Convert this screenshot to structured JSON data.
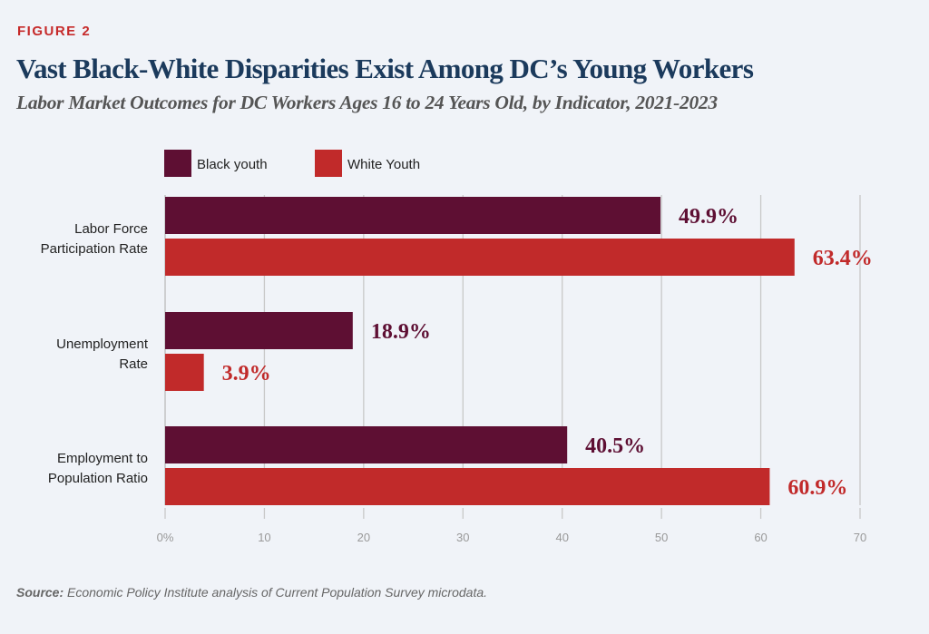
{
  "figure_label": "FIGURE 2",
  "title": "Vast Black-White Disparities Exist Among DC’s Young Workers",
  "subtitle": "Labor Market Outcomes for DC Workers Ages 16 to 24 Years Old, by Indicator, 2021-2023",
  "source": {
    "label": "Source:",
    "text": " Economic Policy Institute analysis of Current Population Survey microdata."
  },
  "chart_data": {
    "type": "bar",
    "orientation": "horizontal",
    "categories": [
      [
        "Labor Force",
        "Participation Rate"
      ],
      [
        "Unemployment",
        "Rate"
      ],
      [
        "Employment to",
        "Population Ratio"
      ]
    ],
    "series": [
      {
        "name": "Black youth",
        "color": "#5e0f33",
        "values": [
          49.9,
          18.9,
          40.5
        ],
        "labels": [
          "49.9%",
          "18.9%",
          "40.5%"
        ]
      },
      {
        "name": "White Youth",
        "color": "#c12a2a",
        "values": [
          63.4,
          3.9,
          60.9
        ],
        "labels": [
          "63.4%",
          "3.9%",
          "60.9%"
        ]
      }
    ],
    "xlim": [
      0,
      70
    ],
    "xticks": [
      "0%",
      "10",
      "20",
      "30",
      "40",
      "50",
      "60",
      "70"
    ],
    "grid": true,
    "legend": "top-left"
  }
}
